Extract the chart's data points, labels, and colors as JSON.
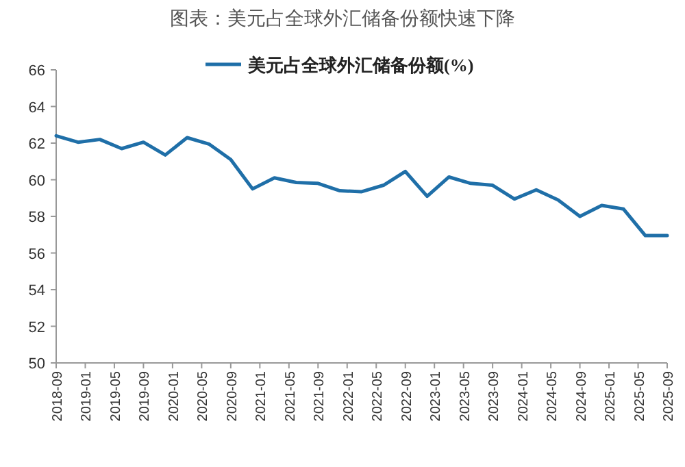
{
  "chart_data": {
    "type": "line",
    "title": "图表：美元占全球外汇储备份额快速下降",
    "x": [
      "2018-09",
      "2018-12",
      "2019-03",
      "2019-06",
      "2019-09",
      "2019-12",
      "2020-03",
      "2020-06",
      "2020-09",
      "2020-12",
      "2021-03",
      "2021-06",
      "2021-09",
      "2021-12",
      "2022-03",
      "2022-06",
      "2022-09",
      "2022-12",
      "2023-03",
      "2023-06",
      "2023-09",
      "2023-12",
      "2024-03",
      "2024-06",
      "2024-09",
      "2024-12",
      "2025-03",
      "2025-06",
      "2025-09"
    ],
    "series": [
      {
        "name": "美元占全球外汇储备份额(%)",
        "color": "#1f6fa8",
        "values": [
          62.4,
          62.05,
          62.2,
          61.7,
          62.05,
          61.35,
          62.3,
          61.95,
          61.1,
          59.5,
          60.1,
          59.85,
          59.8,
          59.4,
          59.35,
          59.7,
          60.45,
          59.1,
          60.15,
          59.8,
          59.7,
          58.95,
          59.45,
          58.9,
          58.0,
          58.6,
          58.4,
          56.95,
          56.95
        ]
      }
    ],
    "xlim": [
      "2018-09",
      "2025-09"
    ],
    "xticks": [
      "2018-09",
      "2019-01",
      "2019-05",
      "2019-09",
      "2020-01",
      "2020-05",
      "2020-09",
      "2021-01",
      "2021-05",
      "2021-09",
      "2022-01",
      "2022-05",
      "2022-09",
      "2023-01",
      "2023-05",
      "2023-09",
      "2024-01",
      "2024-05",
      "2024-09",
      "2025-01",
      "2025-05",
      "2025-09"
    ],
    "ylim": [
      50,
      66
    ],
    "yticks": [
      50,
      52,
      54,
      56,
      58,
      60,
      62,
      64,
      66
    ],
    "legend": "top",
    "grid": false,
    "marker": "none",
    "line_style": "solid"
  }
}
